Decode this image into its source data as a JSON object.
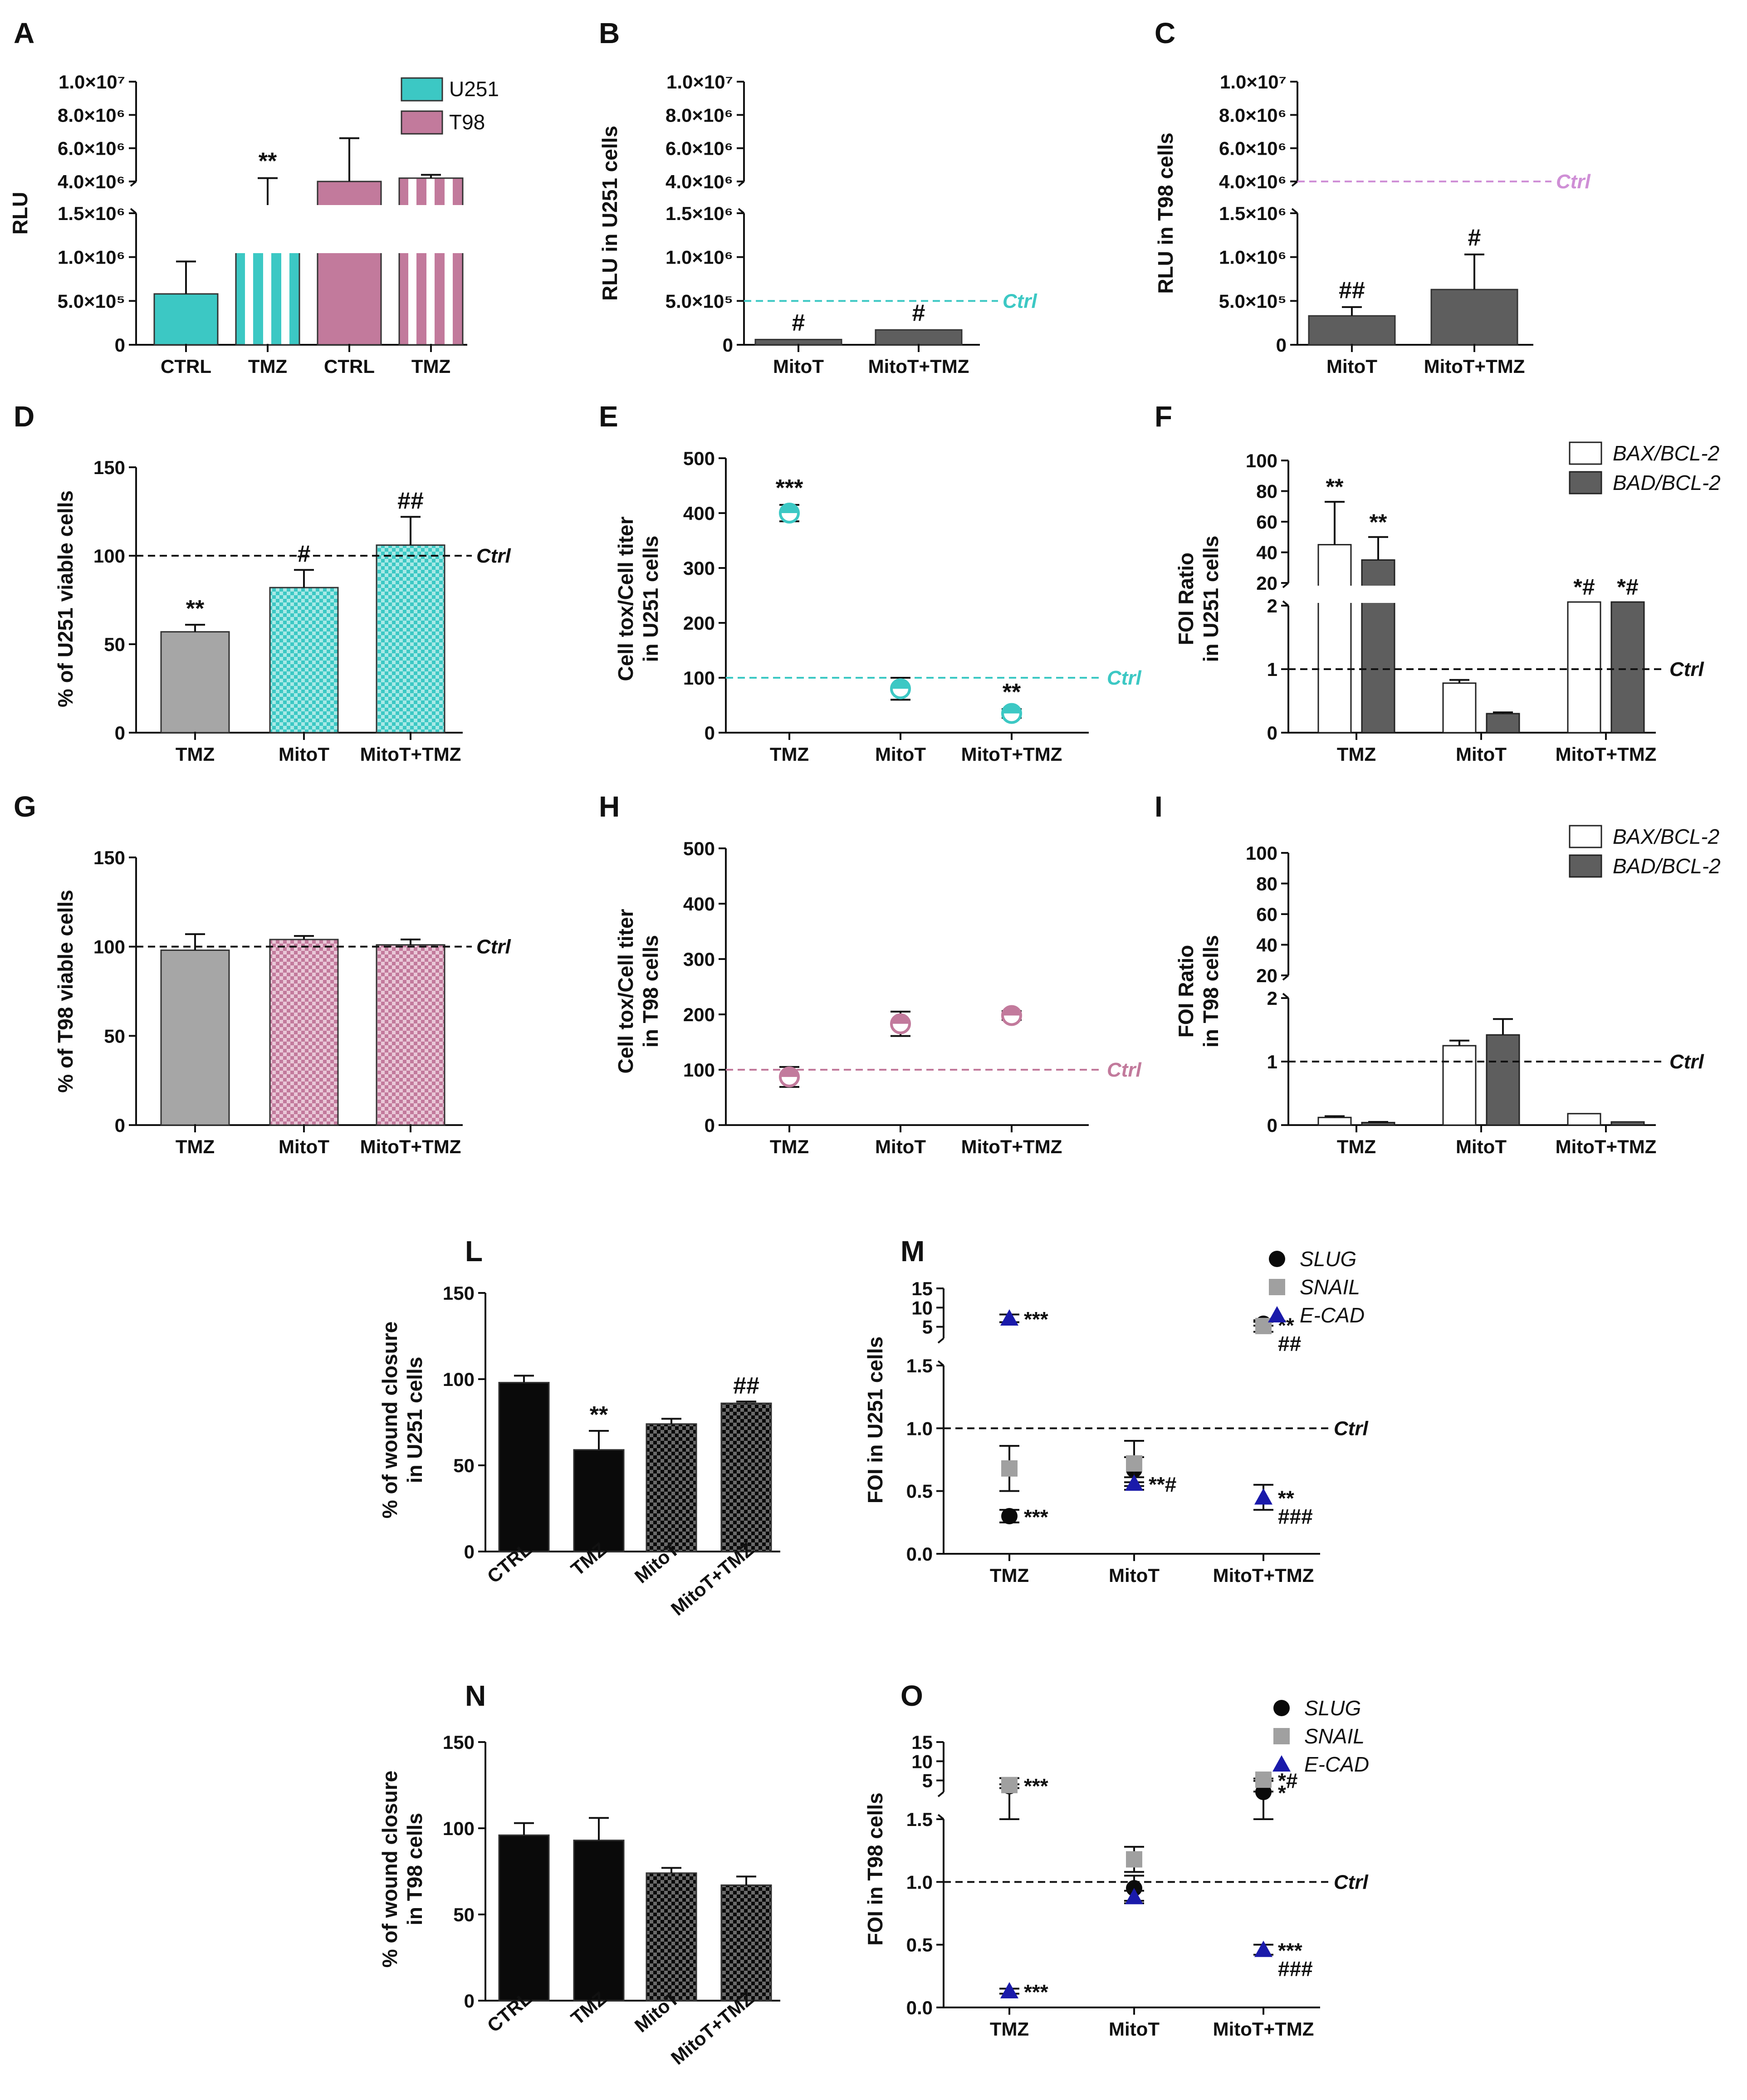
{
  "figure": {
    "description_panels": [
      "A",
      "B",
      "C",
      "D",
      "E",
      "F",
      "G",
      "H",
      "I",
      "L",
      "M",
      "N",
      "O"
    ],
    "ctrl_label": "Ctrl",
    "colors": {
      "u251": "#3cc8c4",
      "t98": "#c27a9c",
      "t98_line": "#cf8fd6",
      "grey": "#a6a6a6",
      "dark": "#5e5e5e",
      "black": "#0a0a0a",
      "blue": "#1a1aaa",
      "lightgrey": "#a0a0a0"
    }
  },
  "chart_data": [
    {
      "id": "A",
      "panel_label": "A",
      "type": "bar",
      "ylabel": "RLU",
      "categories": [
        "CTRL",
        "TMZ",
        "CTRL",
        "TMZ"
      ],
      "series": [
        {
          "name": "U251",
          "color": "#3cc8c4"
        },
        {
          "name": "T98",
          "color": "#c27a9c"
        }
      ],
      "values": [
        580000,
        3200000,
        4000000,
        4200000
      ],
      "errors": [
        370000,
        1000000,
        2600000,
        200000
      ],
      "styles": [
        "solid-u251",
        "stripe-u251",
        "solid-t98",
        "stripe-t98"
      ],
      "annotations": [
        "",
        "**",
        "",
        ""
      ],
      "y_lower_ticks": [
        "0",
        "5.0×10⁵",
        "1.0×10⁶",
        "1.5×10⁶"
      ],
      "y_upper_ticks": [
        "4.0×10⁶",
        "6.0×10⁶",
        "8.0×10⁶",
        "1.0×10⁷"
      ],
      "broken_axis": true
    },
    {
      "id": "B",
      "panel_label": "B",
      "type": "bar",
      "ylabel": "RLU in U251 cells",
      "categories": [
        "MitoT",
        "MitoT+TMZ"
      ],
      "values": [
        60000,
        170000
      ],
      "errors": [
        0,
        0
      ],
      "annotations": [
        "#",
        "#"
      ],
      "ctrl_value": 500000,
      "ctrl_color": "#3cc8c4",
      "y_lower_ticks": [
        "0",
        "5.0×10⁵",
        "1.0×10⁶",
        "1.5×10⁶"
      ],
      "y_upper_ticks": [
        "4.0×10⁶",
        "6.0×10⁶",
        "8.0×10⁶",
        "1.0×10⁷"
      ],
      "broken_axis": true
    },
    {
      "id": "C",
      "panel_label": "C",
      "type": "bar",
      "ylabel": "RLU in T98 cells",
      "categories": [
        "MitoT",
        "MitoT+TMZ"
      ],
      "values": [
        330000,
        630000
      ],
      "errors": [
        100000,
        400000
      ],
      "annotations": [
        "##",
        "#"
      ],
      "ctrl_value": 4000000,
      "ctrl_color": "#cf8fd6",
      "y_lower_ticks": [
        "0",
        "5.0×10⁵",
        "1.0×10⁶",
        "1.5×10⁶"
      ],
      "y_upper_ticks": [
        "4.0×10⁶",
        "6.0×10⁶",
        "8.0×10⁶",
        "1.0×10⁷"
      ],
      "broken_axis": true
    },
    {
      "id": "D",
      "panel_label": "D",
      "type": "bar",
      "ylabel": "% of U251 viable cells",
      "categories": [
        "TMZ",
        "MitoT",
        "MitoT+TMZ"
      ],
      "values": [
        57,
        82,
        106
      ],
      "errors": [
        4,
        10,
        16
      ],
      "annotations": [
        "**",
        "#",
        "##"
      ],
      "ctrl_value": 100,
      "ylim": [
        0,
        150
      ],
      "yticks": [
        0,
        50,
        100,
        150
      ],
      "colors": [
        "#a6a6a6",
        "#3cc8c4",
        "#3cc8c4"
      ],
      "patterns": [
        "none",
        "checker",
        "checker"
      ]
    },
    {
      "id": "E",
      "panel_label": "E",
      "type": "scatter",
      "ylabel": "Cell tox/Cell titer in U251 cells",
      "categories": [
        "TMZ",
        "MitoT",
        "MitoT+TMZ"
      ],
      "values": [
        400,
        80,
        35
      ],
      "errors": [
        15,
        20,
        8
      ],
      "annotations": [
        "***",
        "",
        "**"
      ],
      "ctrl_value": 100,
      "ylim": [
        0,
        500
      ],
      "yticks": [
        0,
        100,
        200,
        300,
        400,
        500
      ],
      "color": "#3cc8c4"
    },
    {
      "id": "F",
      "panel_label": "F",
      "type": "bar",
      "ylabel": "FOI Ratio in U251 cells",
      "categories": [
        "TMZ",
        "MitoT",
        "MitoT+TMZ"
      ],
      "series": [
        {
          "name": "BAX/BCL-2",
          "values": [
            45,
            0.78,
            2.1
          ],
          "errors": [
            28,
            0.05,
            0
          ],
          "annotations": [
            "**",
            "",
            "*#"
          ]
        },
        {
          "name": "BAD/BCL-2",
          "values": [
            35,
            0.3,
            2.1
          ],
          "errors": [
            15,
            0.02,
            0
          ],
          "annotations": [
            "**",
            "",
            "*#"
          ]
        }
      ],
      "ctrl_value": 1,
      "y_lower_ticks": [
        "0",
        "1",
        "2"
      ],
      "y_upper_ticks": [
        "20",
        "40",
        "60",
        "80",
        "100"
      ],
      "broken_axis": true
    },
    {
      "id": "G",
      "panel_label": "G",
      "type": "bar",
      "ylabel": "% of T98 viable cells",
      "categories": [
        "TMZ",
        "MitoT",
        "MitoT+TMZ"
      ],
      "values": [
        98,
        104,
        101
      ],
      "errors": [
        9,
        2,
        3
      ],
      "annotations": [
        "",
        "",
        ""
      ],
      "ctrl_value": 100,
      "ylim": [
        0,
        150
      ],
      "yticks": [
        0,
        50,
        100,
        150
      ],
      "colors": [
        "#a6a6a6",
        "#c27a9c",
        "#c27a9c"
      ],
      "patterns": [
        "none",
        "checker",
        "checker"
      ]
    },
    {
      "id": "H",
      "panel_label": "H",
      "type": "scatter",
      "ylabel": "Cell tox/Cell titer in T98 cells",
      "categories": [
        "TMZ",
        "MitoT",
        "MitoT+TMZ"
      ],
      "values": [
        87,
        183,
        198
      ],
      "errors": [
        18,
        22,
        8
      ],
      "annotations": [
        "",
        "",
        ""
      ],
      "ctrl_value": 100,
      "ylim": [
        0,
        500
      ],
      "yticks": [
        0,
        100,
        200,
        300,
        400,
        500
      ],
      "color": "#c27a9c"
    },
    {
      "id": "I",
      "panel_label": "I",
      "type": "bar",
      "ylabel": "FOI Ratio in T98 cells",
      "categories": [
        "TMZ",
        "MitoT",
        "MitoT+TMZ"
      ],
      "series": [
        {
          "name": "BAX/BCL-2",
          "values": [
            0.12,
            1.25,
            0.18
          ],
          "errors": [
            0.02,
            0.08,
            0
          ],
          "annotations": [
            "",
            "",
            ""
          ]
        },
        {
          "name": "BAD/BCL-2",
          "values": [
            0.04,
            1.42,
            0.05
          ],
          "errors": [
            0.01,
            0.25,
            0
          ],
          "annotations": [
            "",
            "",
            ""
          ]
        }
      ],
      "ctrl_value": 1,
      "y_lower_ticks": [
        "0",
        "1",
        "2"
      ],
      "y_upper_ticks": [
        "20",
        "40",
        "60",
        "80",
        "100"
      ],
      "broken_axis": true
    },
    {
      "id": "L",
      "panel_label": "L",
      "type": "bar",
      "ylabel": "% of wound closure in U251 cells",
      "categories": [
        "CTRL",
        "TMZ",
        "MitoT",
        "MitoT+TMZ"
      ],
      "values": [
        98,
        59,
        74,
        86
      ],
      "errors": [
        4,
        11,
        3,
        1
      ],
      "annotations": [
        "",
        "**",
        "",
        "##"
      ],
      "ylim": [
        0,
        150
      ],
      "yticks": [
        0,
        50,
        100,
        150
      ],
      "colors": [
        "#0a0a0a",
        "#0a0a0a",
        "#0a0a0a",
        "#0a0a0a"
      ],
      "patterns": [
        "none",
        "none",
        "checker",
        "checker"
      ]
    },
    {
      "id": "M",
      "panel_label": "M",
      "type": "scatter",
      "ylabel": "FOI in U251 cells",
      "categories": [
        "TMZ",
        "MitoT",
        "MitoT+TMZ"
      ],
      "series": [
        {
          "name": "SLUG",
          "marker": "circle",
          "color": "#0a0a0a",
          "values": [
            0.3,
            0.67,
            5.8
          ],
          "errors": [
            0.05,
            0.1,
            0.5
          ]
        },
        {
          "name": "SNAIL",
          "marker": "square",
          "color": "#a0a0a0",
          "values": [
            0.68,
            0.72,
            5.2
          ],
          "errors": [
            0.18,
            0.18,
            1.5
          ]
        },
        {
          "name": "E-CAD",
          "marker": "triangle",
          "color": "#1a1aaa",
          "values": [
            7.2,
            0.56,
            0.45
          ],
          "errors": [
            1.0,
            0.05,
            0.1
          ]
        }
      ],
      "annotations": [
        {
          "cat": 0,
          "value": 7.2,
          "text": "***"
        },
        {
          "cat": 0,
          "value": 0.3,
          "text": "***"
        },
        {
          "cat": 1,
          "value": 0.56,
          "text": "**#"
        },
        {
          "cat": 2,
          "value": 5.6,
          "text": "**"
        },
        {
          "cat": 2,
          "value": 5.6,
          "text": "##"
        },
        {
          "cat": 2,
          "value": 0.45,
          "text": "**"
        },
        {
          "cat": 2,
          "value": 0.45,
          "text": "###"
        }
      ],
      "ctrl_value": 1,
      "y_lower_ticks": [
        "0.0",
        "0.5",
        "1.0",
        "1.5"
      ],
      "y_upper_ticks": [
        "5",
        "10",
        "15"
      ],
      "broken_axis": true
    },
    {
      "id": "N",
      "panel_label": "N",
      "type": "bar",
      "ylabel": "% of wound closure in T98 cells",
      "categories": [
        "CTRL",
        "TMZ",
        "MitoT",
        "MitoT+TMZ"
      ],
      "values": [
        96,
        93,
        74,
        67
      ],
      "errors": [
        7,
        13,
        3,
        5
      ],
      "annotations": [
        "",
        "",
        "",
        ""
      ],
      "ylim": [
        0,
        150
      ],
      "yticks": [
        0,
        50,
        100,
        150
      ],
      "colors": [
        "#0a0a0a",
        "#0a0a0a",
        "#0a0a0a",
        "#0a0a0a"
      ],
      "patterns": [
        "none",
        "none",
        "checker",
        "checker"
      ]
    },
    {
      "id": "O",
      "panel_label": "O",
      "type": "scatter",
      "ylabel": "FOI in T98 cells",
      "categories": [
        "TMZ",
        "MitoT",
        "MitoT+TMZ"
      ],
      "series": [
        {
          "name": "SLUG",
          "marker": "circle",
          "color": "#0a0a0a",
          "values": [
            3.5,
            0.95,
            2.0
          ],
          "errors": [
            0.5,
            0.1,
            0.1
          ]
        },
        {
          "name": "SNAIL",
          "marker": "square",
          "color": "#a0a0a0",
          "values": [
            3.8,
            1.18,
            5.2
          ],
          "errors": [
            1.8,
            0.1,
            0.3
          ]
        },
        {
          "name": "E-CAD",
          "marker": "triangle",
          "color": "#1a1aaa",
          "values": [
            0.13,
            0.88,
            0.46
          ],
          "errors": [
            0.02,
            0.05,
            0.04
          ]
        }
      ],
      "annotations": [
        {
          "cat": 0,
          "value": 3.8,
          "text": "***"
        },
        {
          "cat": 0,
          "value": 0.13,
          "text": "***"
        },
        {
          "cat": 2,
          "value": 5.2,
          "text": "*#"
        },
        {
          "cat": 2,
          "value": 2.0,
          "text": "*"
        },
        {
          "cat": 2,
          "value": 0.46,
          "text": "***"
        },
        {
          "cat": 2,
          "value": 0.46,
          "text": "###"
        }
      ],
      "ctrl_value": 1,
      "y_lower_ticks": [
        "0.0",
        "0.5",
        "1.0",
        "1.5"
      ],
      "y_upper_ticks": [
        "5",
        "10",
        "15"
      ],
      "broken_axis": true
    }
  ]
}
